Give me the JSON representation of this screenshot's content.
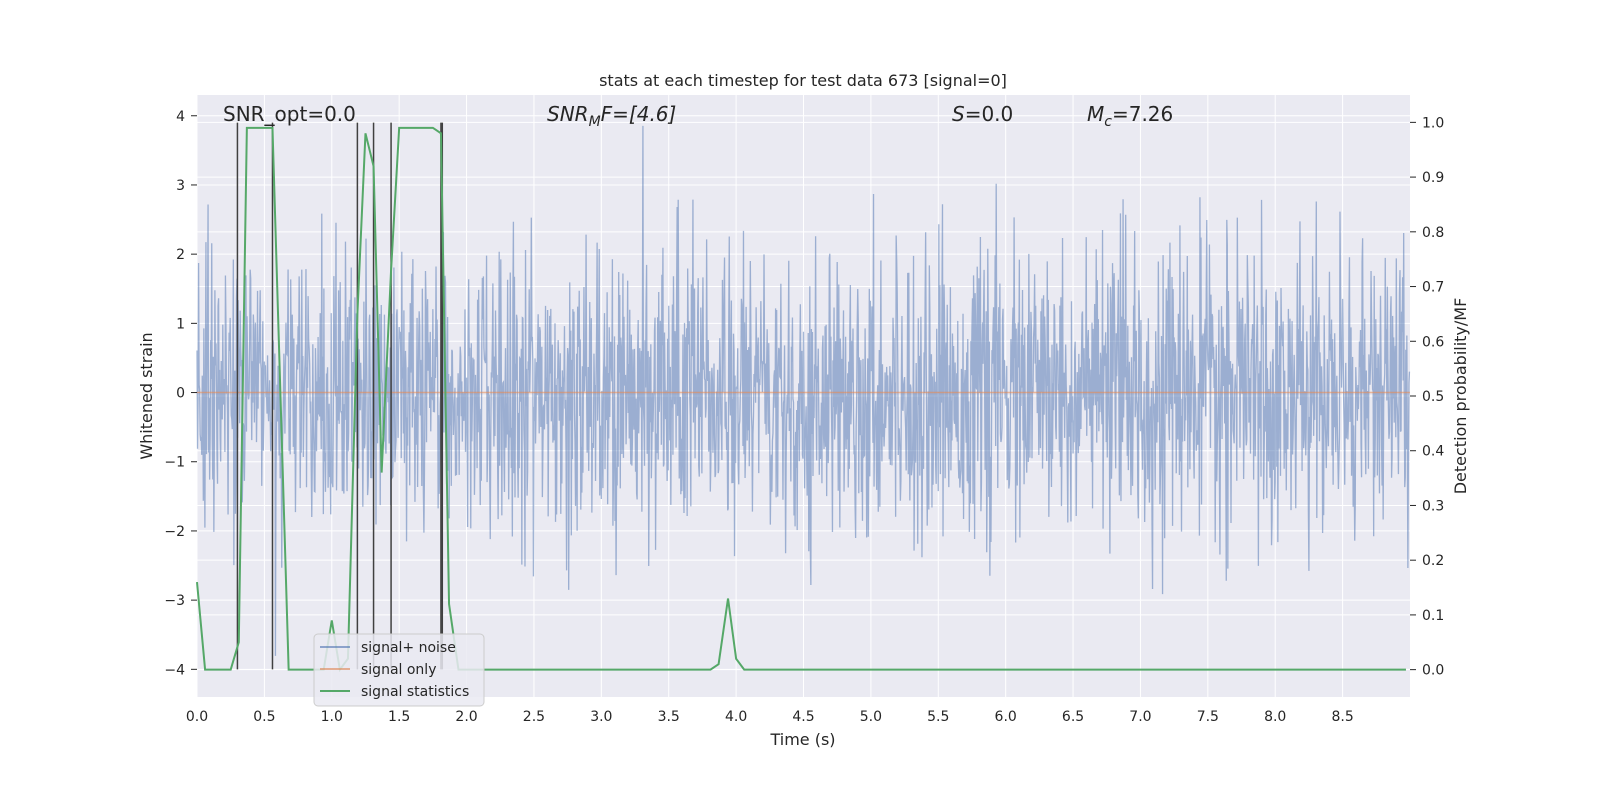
{
  "chart_data": {
    "type": "line",
    "title": "stats at each timestep for test data 673 [signal=0]",
    "xlabel": "Time (s)",
    "ylabel_left": "Whitened strain",
    "ylabel_right": "Detection probability/MF",
    "xlim": [
      0.0,
      9.0
    ],
    "ylim_left": [
      -4.4,
      4.3
    ],
    "ylim_right": [
      -0.05,
      1.05
    ],
    "x_ticks": [
      0.0,
      0.5,
      1.0,
      1.5,
      2.0,
      2.5,
      3.0,
      3.5,
      4.0,
      4.5,
      5.0,
      5.5,
      6.0,
      6.5,
      7.0,
      7.5,
      8.0,
      8.5
    ],
    "x_tick_labels": [
      "0.0",
      "0.5",
      "1.0",
      "1.5",
      "2.0",
      "2.5",
      "3.0",
      "3.5",
      "4.0",
      "4.5",
      "5.0",
      "5.5",
      "6.0",
      "6.5",
      "7.0",
      "7.5",
      "8.0",
      "8.5"
    ],
    "left_ticks": [
      -4,
      -3,
      -2,
      -1,
      0,
      1,
      2,
      3,
      4
    ],
    "left_tick_labels": [
      "−4",
      "−3",
      "−2",
      "−1",
      "0",
      "1",
      "2",
      "3",
      "4"
    ],
    "right_ticks": [
      0.0,
      0.1,
      0.2,
      0.3,
      0.4,
      0.5,
      0.6,
      0.7,
      0.8,
      0.9,
      1.0
    ],
    "right_tick_labels": [
      "0.0",
      "0.1",
      "0.2",
      "0.3",
      "0.4",
      "0.5",
      "0.6",
      "0.7",
      "0.8",
      "0.9",
      "1.0"
    ],
    "grid": true,
    "legend_position": "lower-left",
    "annotations": {
      "snr_opt": "SNR_opt=0.0",
      "snr_mf_main": "SNR",
      "snr_mf_sub": "M",
      "snr_mf_rest": "F=[4.6]",
      "s_main": "S",
      "s_rest": "=0.0",
      "mc_main": "M",
      "mc_sub": "c",
      "mc_rest": "=7.26"
    },
    "series": [
      {
        "name": "signal+ noise",
        "color": "#4c72b0",
        "axis": "left",
        "kind": "noise",
        "duration": 9.0,
        "sample_rate": 256,
        "approx_range": [
          -4.0,
          3.9
        ]
      },
      {
        "name": "signal only",
        "color": "#dd8452",
        "axis": "left",
        "x": [
          0.0,
          9.0
        ],
        "y": [
          0.0,
          0.0
        ]
      },
      {
        "name": "signal statistics",
        "color": "#55a868",
        "axis": "right",
        "x": [
          0.0,
          0.06,
          0.25,
          0.31,
          0.37,
          0.5,
          0.56,
          0.68,
          0.75,
          0.94,
          1.0,
          1.06,
          1.12,
          1.19,
          1.25,
          1.31,
          1.37,
          1.44,
          1.5,
          1.62,
          1.75,
          1.81,
          1.87,
          1.94,
          2.0,
          3.81,
          3.87,
          3.94,
          4.0,
          4.06,
          8.97
        ],
        "y": [
          0.16,
          0.0,
          0.0,
          0.05,
          0.99,
          0.99,
          0.99,
          0.0,
          0.0,
          0.0,
          0.09,
          0.0,
          0.02,
          0.65,
          0.98,
          0.92,
          0.36,
          0.73,
          0.99,
          0.99,
          0.99,
          0.98,
          0.12,
          0.0,
          0.0,
          0.0,
          0.01,
          0.13,
          0.02,
          0.0,
          0.0
        ]
      }
    ],
    "vertical_markers": {
      "color": "#404040",
      "x": [
        0.3,
        0.56,
        1.19,
        1.31,
        1.44,
        1.81,
        1.82
      ],
      "y_range": [
        -4.0,
        3.9
      ]
    }
  }
}
